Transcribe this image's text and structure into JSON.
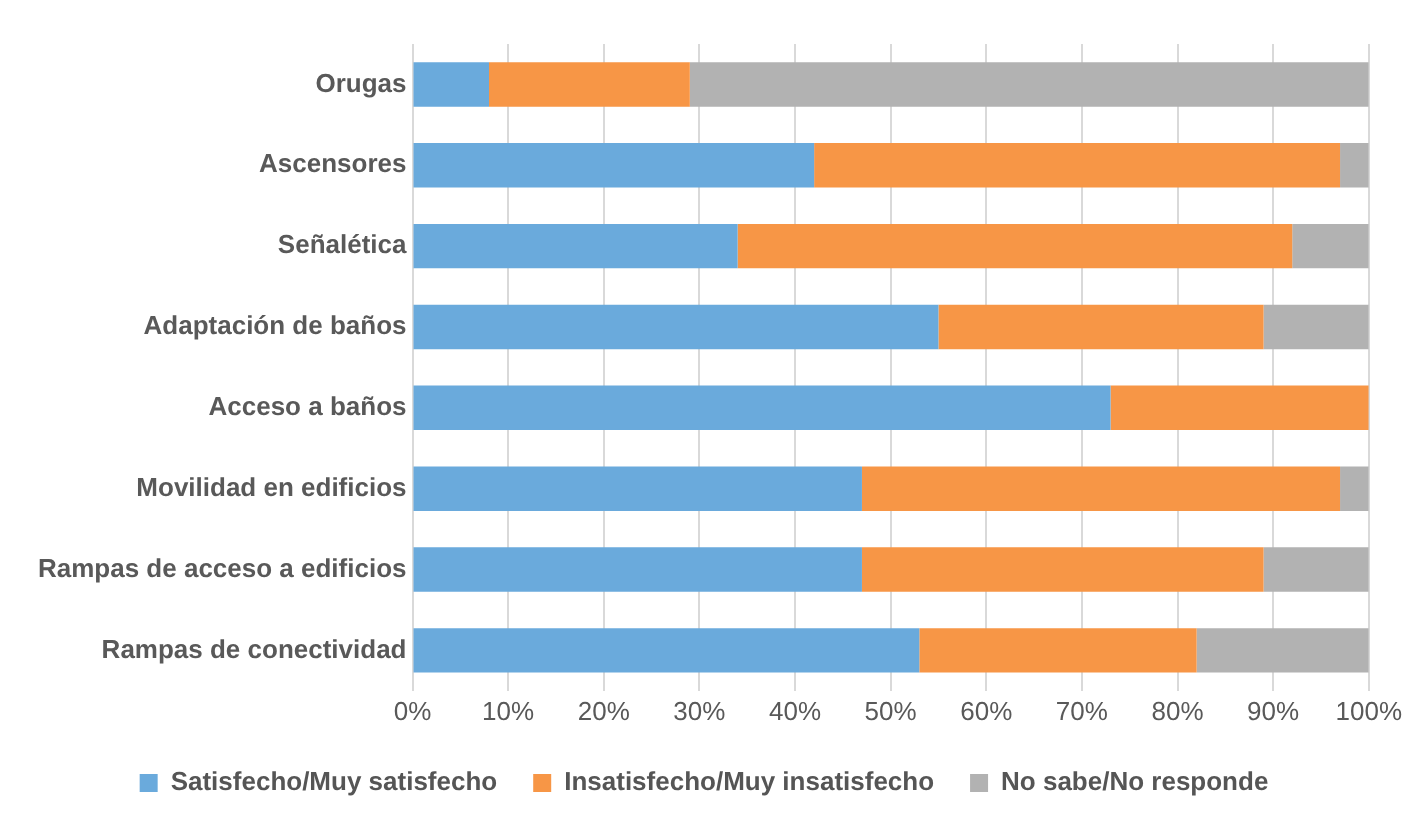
{
  "chart_data": {
    "type": "bar",
    "orientation": "horizontal",
    "stacked": true,
    "categories": [
      "Orugas",
      "Ascensores",
      "Señalética",
      "Adaptación de baños",
      "Acceso a baños",
      "Movilidad en edificios",
      "Rampas de acceso a edificios",
      "Rampas de conectividad"
    ],
    "series": [
      {
        "name": "Satisfecho/Muy satisfecho",
        "color": "#6aaadc",
        "values": [
          8,
          42,
          34,
          55,
          73,
          47,
          47,
          53
        ]
      },
      {
        "name": "Insatisfecho/Muy insatisfecho",
        "color": "#f79646",
        "values": [
          21,
          55,
          58,
          34,
          27,
          50,
          42,
          29
        ]
      },
      {
        "name": "No sabe/No responde",
        "color": "#b2b2b2",
        "values": [
          71,
          3,
          8,
          11,
          0,
          3,
          11,
          18
        ]
      }
    ],
    "xlim": [
      0,
      100
    ],
    "xticks": [
      {
        "value": 0,
        "label": "0%"
      },
      {
        "value": 10,
        "label": "10%"
      },
      {
        "value": 20,
        "label": "20%"
      },
      {
        "value": 30,
        "label": "30%"
      },
      {
        "value": 40,
        "label": "40%"
      },
      {
        "value": 50,
        "label": "50%"
      },
      {
        "value": 60,
        "label": "60%"
      },
      {
        "value": 70,
        "label": "70%"
      },
      {
        "value": 80,
        "label": "80%"
      },
      {
        "value": 90,
        "label": "90%"
      },
      {
        "value": 100,
        "label": "100%"
      }
    ],
    "grid": "x",
    "legend": "bottom"
  }
}
